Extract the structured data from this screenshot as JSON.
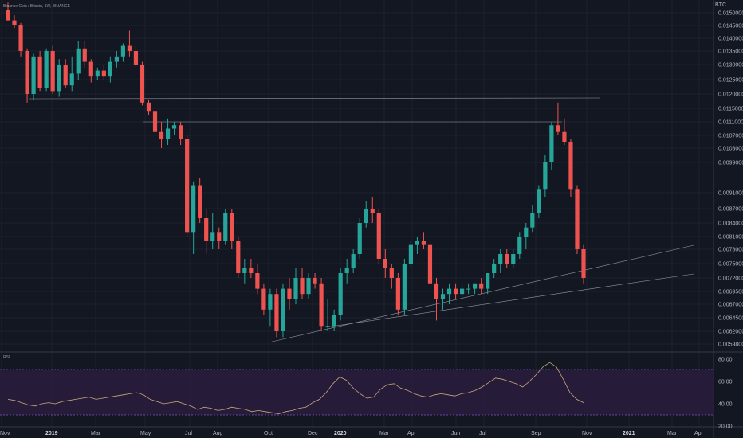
{
  "header": {
    "symbol": "Binance Coin / Bitcoin, 1W, BINANCE",
    "currency": "BTC"
  },
  "chart_data": {
    "type": "candlestick",
    "price_ticks": [
      "0.0150000",
      "0.0145000",
      "0.0140000",
      "0.0135000",
      "0.0130000",
      "0.0125000",
      "0.0120000",
      "0.0115000",
      "0.0111000",
      "0.0107000",
      "0.0103000",
      "0.0099000",
      "0.0091000",
      "0.0087000",
      "0.0084000",
      "0.0081000",
      "0.0078000",
      "0.0075000",
      "0.0072000",
      "0.0069500",
      "0.0067000",
      "0.0064500",
      "0.0062000",
      "0.0059800"
    ],
    "x_labels": [
      "Nov",
      "2019",
      "Mar",
      "May",
      "Jul",
      "Aug",
      "Oct",
      "Dec",
      "2020",
      "Mar",
      "Apr",
      "Jun",
      "Jul",
      "Sep",
      "Nov",
      "2021",
      "Mar",
      "Apr"
    ],
    "candles": [
      [
        0.0151,
        0.0154,
        0.0147,
        0.0147
      ],
      [
        0.0147,
        0.0149,
        0.0144,
        0.0145
      ],
      [
        0.0145,
        0.0146,
        0.0133,
        0.0135
      ],
      [
        0.0135,
        0.0136,
        0.0117,
        0.012
      ],
      [
        0.012,
        0.0134,
        0.0118,
        0.0133
      ],
      [
        0.0133,
        0.0135,
        0.0121,
        0.0122
      ],
      [
        0.0122,
        0.0136,
        0.0121,
        0.0135
      ],
      [
        0.0135,
        0.0137,
        0.012,
        0.0121
      ],
      [
        0.0121,
        0.0132,
        0.0119,
        0.013
      ],
      [
        0.013,
        0.0132,
        0.0122,
        0.0123
      ],
      [
        0.0123,
        0.0133,
        0.0121,
        0.0127
      ],
      [
        0.0127,
        0.0139,
        0.0125,
        0.0136
      ],
      [
        0.0136,
        0.0139,
        0.0129,
        0.0131
      ],
      [
        0.0131,
        0.0132,
        0.0124,
        0.0126
      ],
      [
        0.0126,
        0.0129,
        0.0125,
        0.0128
      ],
      [
        0.0128,
        0.013,
        0.0125,
        0.0126
      ],
      [
        0.0126,
        0.0133,
        0.0124,
        0.0131
      ],
      [
        0.0131,
        0.0135,
        0.0129,
        0.0133
      ],
      [
        0.0133,
        0.0138,
        0.0131,
        0.0137
      ],
      [
        0.0137,
        0.0143,
        0.0133,
        0.0135
      ],
      [
        0.0135,
        0.0137,
        0.0129,
        0.013
      ],
      [
        0.013,
        0.0131,
        0.0116,
        0.0117
      ],
      [
        0.0117,
        0.0118,
        0.0113,
        0.0114
      ],
      [
        0.0114,
        0.0115,
        0.0106,
        0.0108
      ],
      [
        0.0108,
        0.0111,
        0.0103,
        0.0106
      ],
      [
        0.0106,
        0.0112,
        0.0104,
        0.0109
      ],
      [
        0.0109,
        0.0111,
        0.0107,
        0.011
      ],
      [
        0.011,
        0.0111,
        0.0104,
        0.0106
      ],
      [
        0.0106,
        0.0107,
        0.0081,
        0.0082
      ],
      [
        0.0082,
        0.0094,
        0.0077,
        0.0093
      ],
      [
        0.0093,
        0.0095,
        0.0084,
        0.0085
      ],
      [
        0.0085,
        0.0087,
        0.0077,
        0.008
      ],
      [
        0.008,
        0.0086,
        0.0078,
        0.0082
      ],
      [
        0.0082,
        0.0083,
        0.0078,
        0.008
      ],
      [
        0.008,
        0.0087,
        0.0079,
        0.0086
      ],
      [
        0.0086,
        0.0087,
        0.0078,
        0.008
      ],
      [
        0.008,
        0.0081,
        0.0072,
        0.0073
      ],
      [
        0.0073,
        0.0076,
        0.0071,
        0.0074
      ],
      [
        0.0074,
        0.0076,
        0.0072,
        0.0073
      ],
      [
        0.0073,
        0.0075,
        0.0069,
        0.007
      ],
      [
        0.007,
        0.0071,
        0.0065,
        0.0066
      ],
      [
        0.0066,
        0.007,
        0.0063,
        0.0069
      ],
      [
        0.0069,
        0.007,
        0.0061,
        0.0062
      ],
      [
        0.0062,
        0.0071,
        0.0061,
        0.007
      ],
      [
        0.007,
        0.0072,
        0.0066,
        0.0068
      ],
      [
        0.0068,
        0.0074,
        0.0067,
        0.0072
      ],
      [
        0.0072,
        0.0074,
        0.0068,
        0.0069
      ],
      [
        0.0069,
        0.0073,
        0.0068,
        0.0072
      ],
      [
        0.0072,
        0.0073,
        0.007,
        0.0071
      ],
      [
        0.0071,
        0.0072,
        0.0062,
        0.0063
      ],
      [
        0.0063,
        0.0068,
        0.0062,
        0.0063
      ],
      [
        0.0063,
        0.0066,
        0.0062,
        0.0065
      ],
      [
        0.0065,
        0.0074,
        0.0064,
        0.0073
      ],
      [
        0.0073,
        0.0076,
        0.0071,
        0.0074
      ],
      [
        0.0074,
        0.0078,
        0.0073,
        0.0077
      ],
      [
        0.0077,
        0.0085,
        0.0076,
        0.0084
      ],
      [
        0.0084,
        0.0089,
        0.0083,
        0.0087
      ],
      [
        0.0087,
        0.009,
        0.0084,
        0.0086
      ],
      [
        0.0086,
        0.0087,
        0.0075,
        0.0076
      ],
      [
        0.0076,
        0.0078,
        0.0072,
        0.0074
      ],
      [
        0.0074,
        0.0075,
        0.007,
        0.0072
      ],
      [
        0.0072,
        0.0073,
        0.0065,
        0.0066
      ],
      [
        0.0066,
        0.0076,
        0.0065,
        0.0075
      ],
      [
        0.0075,
        0.008,
        0.0074,
        0.0079
      ],
      [
        0.0079,
        0.0081,
        0.0077,
        0.008
      ],
      [
        0.008,
        0.0082,
        0.0078,
        0.0079
      ],
      [
        0.0079,
        0.008,
        0.007,
        0.0071
      ],
      [
        0.0071,
        0.0072,
        0.0064,
        0.0068
      ],
      [
        0.0068,
        0.007,
        0.0066,
        0.0069
      ],
      [
        0.0069,
        0.0071,
        0.0067,
        0.007
      ],
      [
        0.007,
        0.0071,
        0.0068,
        0.0069
      ],
      [
        0.0069,
        0.0071,
        0.0068,
        0.007
      ],
      [
        0.007,
        0.0071,
        0.0069,
        0.007
      ],
      [
        0.007,
        0.0071,
        0.0069,
        0.0071
      ],
      [
        0.0071,
        0.0072,
        0.0069,
        0.007
      ],
      [
        0.007,
        0.0073,
        0.0069,
        0.0073
      ],
      [
        0.0073,
        0.0076,
        0.0072,
        0.0075
      ],
      [
        0.0075,
        0.0078,
        0.0073,
        0.0077
      ],
      [
        0.0077,
        0.0078,
        0.0074,
        0.0075
      ],
      [
        0.0075,
        0.0078,
        0.0074,
        0.0077
      ],
      [
        0.0077,
        0.0082,
        0.0076,
        0.0081
      ],
      [
        0.0081,
        0.0084,
        0.0078,
        0.0083
      ],
      [
        0.0083,
        0.0088,
        0.0082,
        0.0086
      ],
      [
        0.0086,
        0.0093,
        0.0085,
        0.0092
      ],
      [
        0.0092,
        0.0101,
        0.009,
        0.0099
      ],
      [
        0.0099,
        0.0111,
        0.0097,
        0.011
      ],
      [
        0.011,
        0.0117,
        0.0107,
        0.0108
      ],
      [
        0.0108,
        0.0112,
        0.0104,
        0.0105
      ],
      [
        0.0105,
        0.0106,
        0.009,
        0.0092
      ],
      [
        0.0092,
        0.0093,
        0.0077,
        0.0078
      ],
      [
        0.0078,
        0.0079,
        0.0071,
        0.0072
      ]
    ],
    "rsi": [
      44,
      43,
      41,
      39,
      38,
      40,
      41,
      40,
      42,
      43,
      44,
      45,
      46,
      44,
      45,
      46,
      47,
      48,
      49,
      50,
      48,
      44,
      42,
      40,
      41,
      42,
      40,
      38,
      35,
      37,
      36,
      34,
      35,
      37,
      36,
      35,
      33,
      34,
      33,
      32,
      31,
      33,
      34,
      36,
      37,
      41,
      44,
      50,
      58,
      64,
      61,
      54,
      49,
      45,
      46,
      53,
      57,
      58,
      54,
      52,
      49,
      47,
      46,
      48,
      49,
      48,
      47,
      49,
      50,
      52,
      55,
      59,
      63,
      62,
      60,
      58,
      55,
      60,
      66,
      73,
      77,
      73,
      62,
      50,
      44,
      41
    ],
    "rsi_ticks": [
      "80.00",
      "60.00",
      "40.00",
      "20.00"
    ],
    "rsi_title": "RSI",
    "colors": {
      "up": "#26a69a",
      "down": "#ef5350",
      "bg": "#131722",
      "grid": "#1e222d",
      "rsi_band": "#2a1d3d",
      "rsi_line": "#c8a87a"
    }
  }
}
